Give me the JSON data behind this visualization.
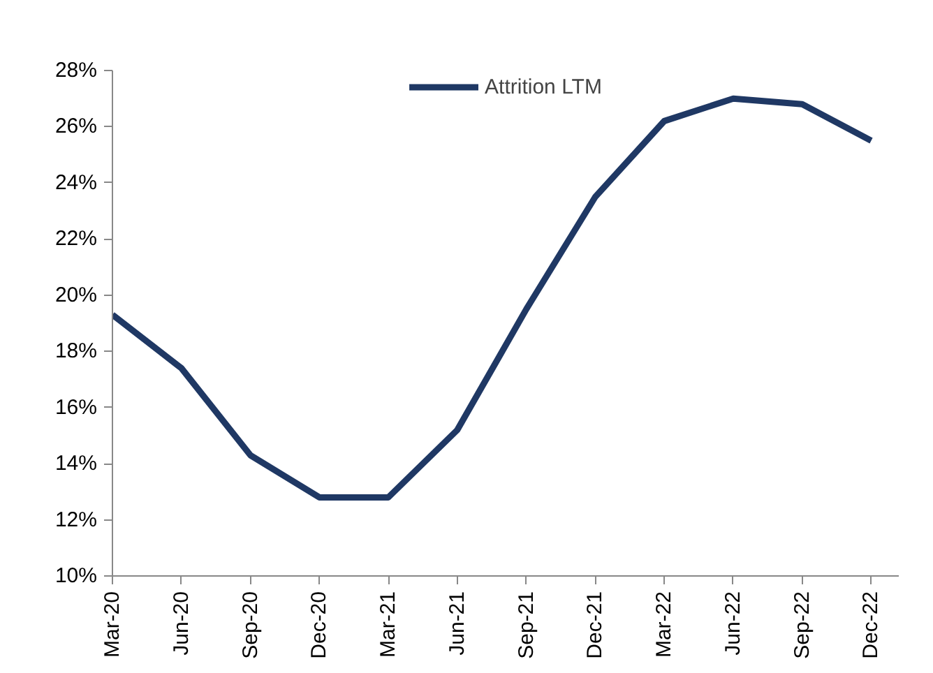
{
  "chart_data": {
    "type": "line",
    "categories": [
      "Mar-20",
      "Jun-20",
      "Sep-20",
      "Dec-20",
      "Mar-21",
      "Jun-21",
      "Sep-21",
      "Dec-21",
      "Mar-22",
      "Jun-22",
      "Sep-22",
      "Dec-22"
    ],
    "series": [
      {
        "name": "Attrition LTM",
        "color": "#1f3864",
        "values": [
          19.3,
          17.4,
          14.3,
          12.8,
          12.8,
          15.2,
          19.5,
          23.5,
          26.2,
          27.0,
          26.8,
          25.5
        ]
      }
    ],
    "ylim": [
      10,
      28
    ],
    "yticks": [
      {
        "value": 10,
        "label": "10%"
      },
      {
        "value": 12,
        "label": "12%"
      },
      {
        "value": 14,
        "label": "14%"
      },
      {
        "value": 16,
        "label": "16%"
      },
      {
        "value": 18,
        "label": "18%"
      },
      {
        "value": 20,
        "label": "20%"
      },
      {
        "value": 22,
        "label": "22%"
      },
      {
        "value": 24,
        "label": "24%"
      },
      {
        "value": 26,
        "label": "26%"
      },
      {
        "value": 28,
        "label": "28%"
      }
    ],
    "grid": false,
    "legend": "top",
    "marker": "none",
    "line_style": "solid"
  }
}
